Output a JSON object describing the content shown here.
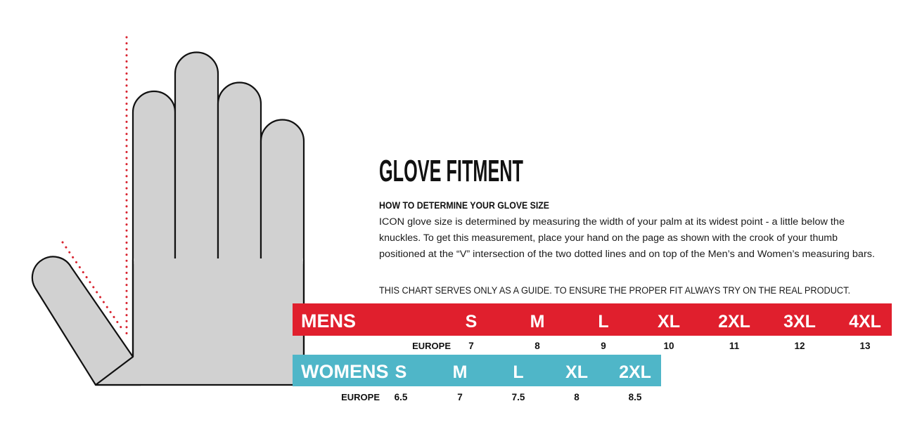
{
  "title": "GLOVE FITMENT",
  "subtitle": "HOW TO DETERMINE YOUR GLOVE SIZE",
  "body": [
    "ICON glove size is determined by measuring the width of your palm at its widest point - a little below the",
    "knuckles. To get this measurement, place your hand on the page as shown with the crook of your thumb",
    "positioned at the “V” intersection of the two dotted lines and on top of the Men’s and Women’s measuring bars."
  ],
  "note": "THIS CHART SERVES ONLY AS A GUIDE. TO ENSURE THE PROPER FIT ALWAYS TRY ON THE REAL PRODUCT.",
  "mens": {
    "label": "MENS",
    "sizes": [
      "S",
      "M",
      "L",
      "XL",
      "2XL",
      "3XL",
      "4XL"
    ],
    "europe_label": "EUROPE",
    "europe": [
      "7",
      "8",
      "9",
      "10",
      "11",
      "12",
      "13"
    ]
  },
  "womens": {
    "label": "WOMENS",
    "sizes": [
      "S",
      "M",
      "L",
      "XL",
      "2XL"
    ],
    "europe_label": "EUROPE",
    "europe": [
      "6.5",
      "7",
      "7.5",
      "8",
      "8.5"
    ]
  }
}
